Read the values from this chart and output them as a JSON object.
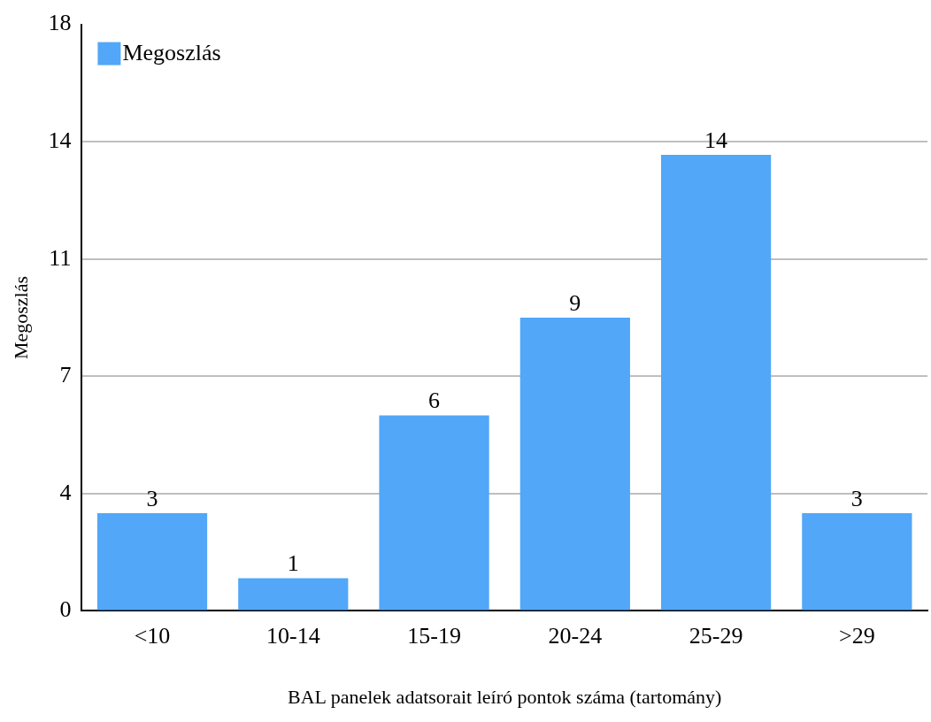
{
  "chart_data": {
    "type": "bar",
    "xlabel": "BAL panelek adatsorait leíró pontok száma (tartomány)",
    "ylabel": "Megoszlás",
    "categories": [
      "<10",
      "10-14",
      "15-19",
      "20-24",
      "25-29",
      ">29"
    ],
    "series": [
      {
        "name": "Megoszlás",
        "color": "#52a7f8",
        "values": [
          3,
          1,
          6,
          9,
          14,
          3
        ]
      }
    ],
    "ylim": [
      0,
      18
    ],
    "yticks": [
      0,
      {
        "value": 3.6,
        "label": "4"
      },
      {
        "value": 7.2,
        "label": "7"
      },
      {
        "value": 10.8,
        "label": "11"
      },
      {
        "value": 14.4,
        "label": "14"
      },
      18
    ],
    "grid": "y",
    "legend": "top left",
    "data_labels": true
  }
}
